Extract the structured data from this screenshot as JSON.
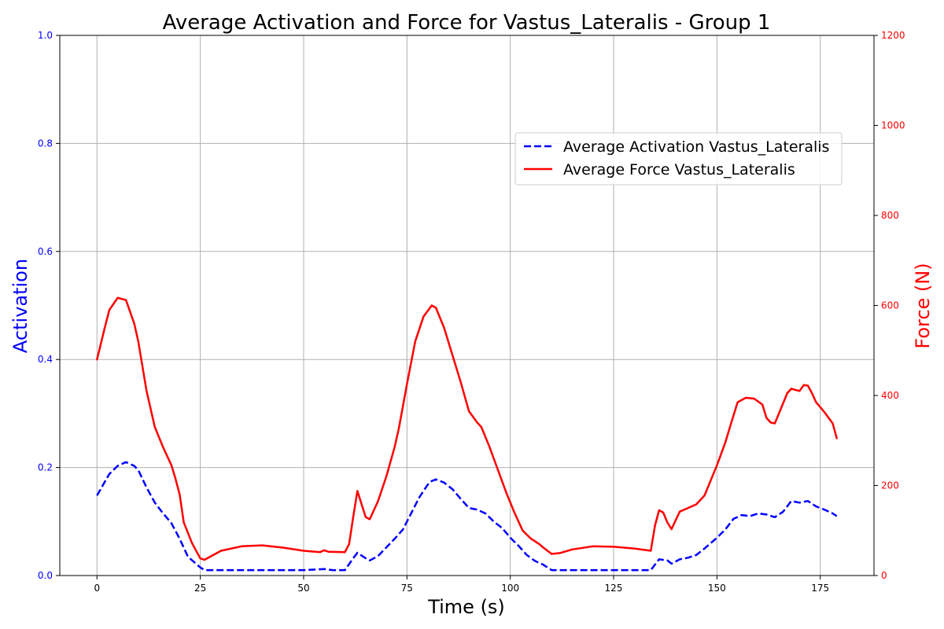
{
  "chart_data": {
    "type": "line",
    "title": "Average Activation and Force for Vastus_Lateralis - Group 1",
    "xlabel": "Time (s)",
    "ylabel_left": "Activation",
    "ylabel_right": "Force (N)",
    "xlim": [
      -9,
      188
    ],
    "ylim_left": [
      0,
      1.0
    ],
    "ylim_right": [
      0,
      1200
    ],
    "x_ticks": [
      0,
      25,
      50,
      75,
      100,
      125,
      150,
      175
    ],
    "y_left_ticks": [
      0.0,
      0.2,
      0.4,
      0.6,
      0.8,
      1.0
    ],
    "y_left_tick_labels": [
      "0.0",
      "0.2",
      "0.4",
      "0.6",
      "0.8",
      "1.0"
    ],
    "y_right_ticks": [
      0,
      200,
      400,
      600,
      800,
      1000,
      1200
    ],
    "grid": true,
    "legend_position": "upper-right",
    "colors": {
      "left_axis": "#0000ff",
      "right_axis": "#ff0000",
      "grid": "#b0b0b0"
    },
    "series": [
      {
        "name": "Average Activation Vastus_Lateralis",
        "axis": "left",
        "style": "dashed",
        "color": "#0000ff",
        "x": [
          0,
          2,
          3,
          5,
          7,
          9,
          10,
          12,
          14,
          16,
          18,
          20,
          22,
          25,
          26,
          30,
          40,
          50,
          55,
          57,
          60,
          62,
          63,
          65,
          66,
          68,
          70,
          72,
          74,
          76,
          78,
          80,
          81,
          82,
          84,
          86,
          88,
          90,
          92,
          94,
          96,
          98,
          100,
          102,
          104,
          106,
          108,
          110,
          120,
          130,
          134,
          136,
          138,
          139,
          141,
          143,
          145,
          147,
          150,
          152,
          154,
          156,
          158,
          160,
          162,
          164,
          166,
          168,
          170,
          172,
          174,
          176,
          178,
          179
        ],
        "y": [
          0.148,
          0.175,
          0.188,
          0.203,
          0.21,
          0.203,
          0.195,
          0.163,
          0.135,
          0.115,
          0.097,
          0.068,
          0.035,
          0.015,
          0.01,
          0.01,
          0.01,
          0.01,
          0.012,
          0.01,
          0.01,
          0.032,
          0.042,
          0.032,
          0.028,
          0.036,
          0.052,
          0.068,
          0.085,
          0.115,
          0.145,
          0.168,
          0.175,
          0.178,
          0.172,
          0.16,
          0.142,
          0.125,
          0.122,
          0.115,
          0.1,
          0.088,
          0.07,
          0.055,
          0.038,
          0.027,
          0.02,
          0.01,
          0.01,
          0.01,
          0.01,
          0.03,
          0.028,
          0.022,
          0.03,
          0.033,
          0.038,
          0.05,
          0.07,
          0.085,
          0.105,
          0.112,
          0.11,
          0.115,
          0.113,
          0.108,
          0.118,
          0.138,
          0.135,
          0.138,
          0.128,
          0.122,
          0.115,
          0.11
        ]
      },
      {
        "name": "Average Force Vastus_Lateralis",
        "axis": "right",
        "style": "solid",
        "color": "#ff0000",
        "x": [
          0,
          2,
          3,
          5,
          7,
          9,
          10,
          12,
          14,
          16,
          18,
          19,
          20,
          21,
          23,
          25,
          26,
          30,
          35,
          40,
          45,
          50,
          54,
          55,
          56,
          60,
          61,
          62,
          63,
          65,
          66,
          68,
          70,
          72,
          73,
          75,
          77,
          79,
          81,
          82,
          84,
          86,
          88,
          90,
          92,
          93,
          95,
          97,
          99,
          101,
          103,
          105,
          107,
          108,
          110,
          112,
          115,
          120,
          125,
          130,
          134,
          135,
          136,
          137,
          138,
          139,
          141,
          143,
          145,
          147,
          150,
          152,
          153,
          155,
          157,
          159,
          161,
          162,
          163,
          164,
          165,
          167,
          168,
          170,
          171,
          172,
          173,
          174,
          176,
          178,
          179
        ],
        "y": [
          480,
          555,
          590,
          617,
          612,
          560,
          520,
          410,
          330,
          285,
          245,
          215,
          180,
          118,
          72,
          38,
          35,
          55,
          65,
          67,
          62,
          55,
          52,
          56,
          53,
          52,
          70,
          130,
          188,
          130,
          125,
          165,
          220,
          285,
          325,
          425,
          520,
          575,
          600,
          595,
          550,
          490,
          430,
          365,
          340,
          330,
          285,
          235,
          185,
          140,
          100,
          82,
          70,
          62,
          48,
          50,
          58,
          65,
          64,
          60,
          55,
          110,
          145,
          140,
          118,
          103,
          142,
          150,
          158,
          178,
          245,
          295,
          325,
          385,
          395,
          393,
          380,
          350,
          340,
          338,
          360,
          405,
          415,
          410,
          423,
          422,
          405,
          385,
          363,
          338,
          305
        ]
      }
    ]
  }
}
